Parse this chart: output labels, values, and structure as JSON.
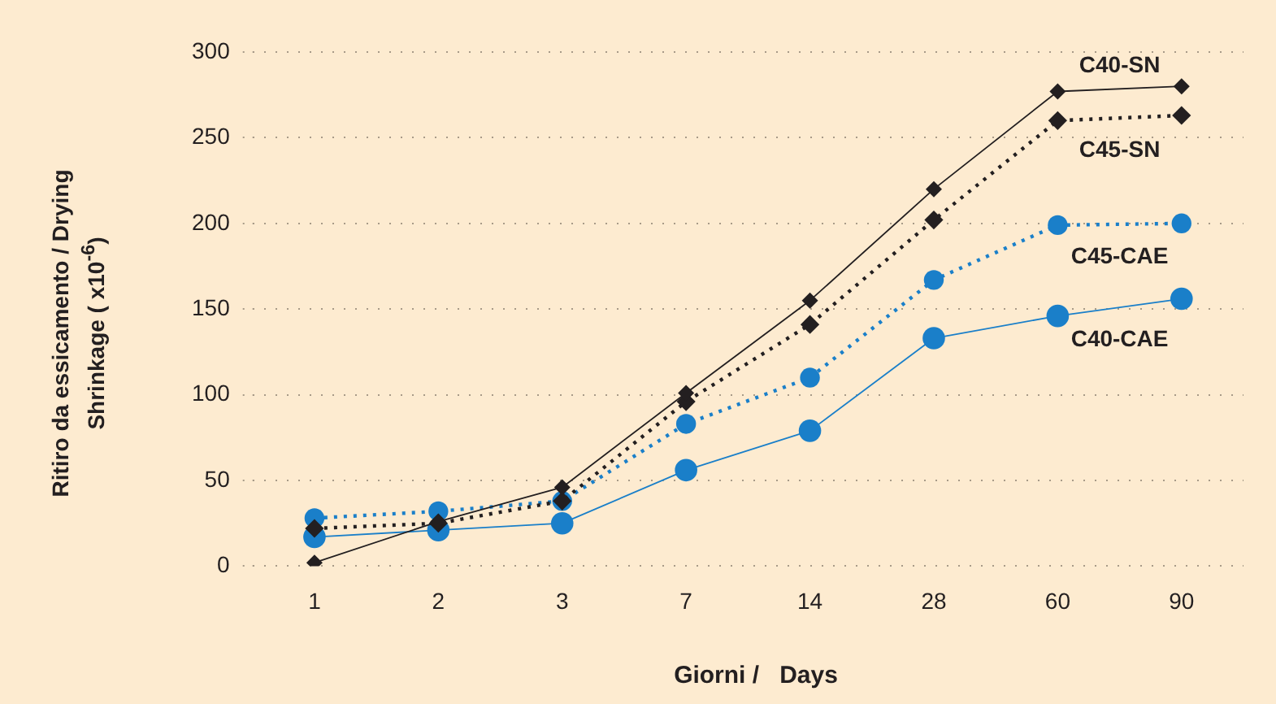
{
  "chart_data": {
    "type": "line",
    "xlabel": "Giorni /   Days",
    "ylabel": "Ritiro da essicamento / Drying Shrinkage ( x10$^{-6}$)",
    "categories": [
      "1",
      "2",
      "3",
      "7",
      "14",
      "28",
      "60",
      "90"
    ],
    "ylim": [
      0,
      300
    ],
    "yticks": [
      0,
      50,
      100,
      150,
      200,
      250,
      300
    ],
    "grid": "y",
    "legend": false,
    "series": [
      {
        "name": "C40-SN",
        "color": "#231f20",
        "marker": "diamond",
        "line_style": "solid",
        "values": [
          2,
          26,
          46,
          101,
          155,
          220,
          277,
          280
        ]
      },
      {
        "name": "C45-SN",
        "color": "#231f20",
        "marker": "diamond",
        "line_style": "dotted",
        "values": [
          22,
          25,
          38,
          96,
          141,
          202,
          260,
          263
        ]
      },
      {
        "name": "C45-CAE",
        "color": "#1a7fc9",
        "marker": "circle",
        "line_style": "dotted",
        "values": [
          28,
          32,
          38,
          83,
          110,
          167,
          199,
          200
        ]
      },
      {
        "name": "C40-CAE",
        "color": "#1a7fc9",
        "marker": "circle",
        "line_style": "solid",
        "values": [
          17,
          21,
          25,
          56,
          79,
          133,
          146,
          156
        ]
      }
    ]
  }
}
